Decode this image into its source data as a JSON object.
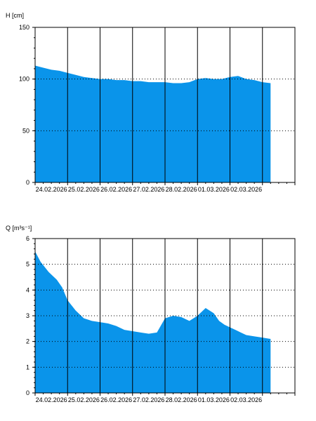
{
  "chart_data": [
    {
      "type": "area",
      "ylabel": "H [cm]",
      "ylim": [
        0,
        150
      ],
      "yticks": [
        0,
        50,
        100,
        150
      ],
      "xlim": [
        "2026-02-23T00:00",
        "2026-03-03T00:00"
      ],
      "xtick_labels": [
        "24.02.2026",
        "25.02.2026",
        "26.02.2026",
        "27.02.2026",
        "28.02.2026",
        "01.03.2026",
        "02.03.2026"
      ],
      "grid": "vertical solid at day boundaries; horizontal dotted at 50 and 100",
      "fill_color": "#0a94ea",
      "series": [
        {
          "x": [
            "2026-02-23T00:00",
            "2026-02-23T06:00",
            "2026-02-23T12:00",
            "2026-02-23T18:00",
            "2026-02-24T00:00",
            "2026-02-24T06:00",
            "2026-02-24T12:00",
            "2026-02-24T18:00",
            "2026-02-25T00:00",
            "2026-02-25T06:00",
            "2026-02-25T12:00",
            "2026-02-25T18:00",
            "2026-02-26T00:00",
            "2026-02-26T06:00",
            "2026-02-26T12:00",
            "2026-02-26T18:00",
            "2026-02-27T00:00",
            "2026-02-27T06:00",
            "2026-02-27T12:00",
            "2026-02-27T18:00",
            "2026-02-28T00:00",
            "2026-02-28T06:00",
            "2026-02-28T12:00",
            "2026-02-28T18:00",
            "2026-03-01T00:00",
            "2026-03-01T06:00",
            "2026-03-01T12:00",
            "2026-03-01T18:00",
            "2026-03-02T00:00",
            "2026-03-02T06:00"
          ],
          "values": [
            113,
            111,
            109,
            108,
            106,
            104,
            102,
            101,
            100,
            100,
            99,
            99,
            98,
            98,
            97,
            97,
            97,
            96,
            96,
            97,
            100,
            101,
            100,
            100,
            102,
            103,
            100,
            99,
            97,
            96
          ]
        }
      ]
    },
    {
      "type": "area",
      "ylabel": "Q [m³s⁻¹]",
      "ylim": [
        0,
        6
      ],
      "yticks": [
        0,
        1,
        2,
        3,
        4,
        5,
        6
      ],
      "xlim": [
        "2026-02-23T00:00",
        "2026-03-03T00:00"
      ],
      "xtick_labels": [
        "24.02.2026",
        "25.02.2026",
        "26.02.2026",
        "27.02.2026",
        "28.02.2026",
        "01.03.2026",
        "02.03.2026"
      ],
      "grid": "vertical solid at day boundaries; horizontal dotted at 1 to 5",
      "fill_color": "#0a94ea",
      "series": [
        {
          "x": [
            "2026-02-23T00:00",
            "2026-02-23T04:00",
            "2026-02-23T10:00",
            "2026-02-23T16:00",
            "2026-02-23T20:00",
            "2026-02-24T00:00",
            "2026-02-24T06:00",
            "2026-02-24T12:00",
            "2026-02-24T18:00",
            "2026-02-25T00:00",
            "2026-02-25T06:00",
            "2026-02-25T12:00",
            "2026-02-25T18:00",
            "2026-02-26T00:00",
            "2026-02-26T06:00",
            "2026-02-26T12:00",
            "2026-02-26T18:00",
            "2026-02-27T00:00",
            "2026-02-27T06:00",
            "2026-02-27T12:00",
            "2026-02-27T18:00",
            "2026-02-28T00:00",
            "2026-02-28T06:00",
            "2026-02-28T12:00",
            "2026-02-28T16:00",
            "2026-02-28T20:00",
            "2026-03-01T00:00",
            "2026-03-01T04:00",
            "2026-03-01T08:00",
            "2026-03-01T12:00",
            "2026-03-01T18:00",
            "2026-03-02T00:00",
            "2026-03-02T06:00"
          ],
          "values": [
            5.5,
            5.1,
            4.7,
            4.4,
            4.1,
            3.6,
            3.2,
            2.9,
            2.8,
            2.75,
            2.7,
            2.6,
            2.45,
            2.4,
            2.35,
            2.3,
            2.35,
            2.9,
            3.0,
            2.95,
            2.8,
            3.0,
            3.3,
            3.1,
            2.8,
            2.65,
            2.55,
            2.45,
            2.35,
            2.25,
            2.2,
            2.15,
            2.1
          ]
        }
      ]
    }
  ]
}
